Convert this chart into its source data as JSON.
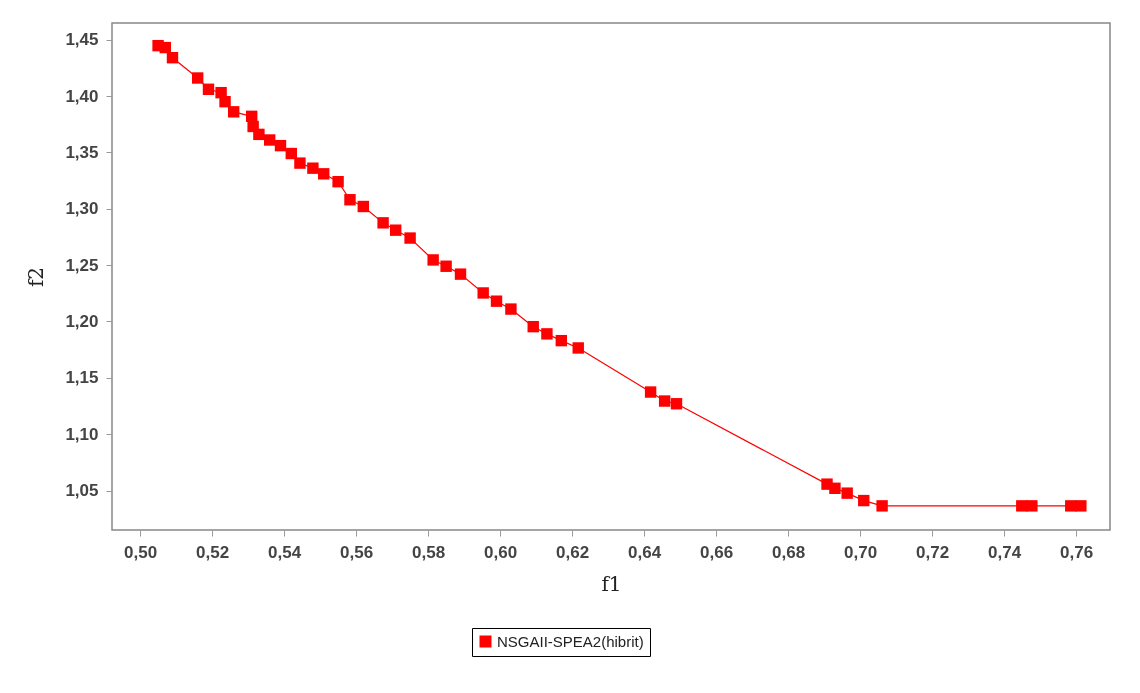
{
  "chart_data": {
    "type": "line",
    "xlabel": "f1",
    "ylabel": "f2",
    "marker": "square",
    "line_style": "solid",
    "grid": false,
    "legend": "bottom",
    "xlim": [
      0.4922,
      0.7694
    ],
    "ylim": [
      1.015,
      1.4648
    ],
    "xticks": [
      {
        "value": 0.5,
        "label": "0,50"
      },
      {
        "value": 0.52,
        "label": "0,52"
      },
      {
        "value": 0.54,
        "label": "0,54"
      },
      {
        "value": 0.56,
        "label": "0,56"
      },
      {
        "value": 0.58,
        "label": "0,58"
      },
      {
        "value": 0.6,
        "label": "0,60"
      },
      {
        "value": 0.62,
        "label": "0,62"
      },
      {
        "value": 0.64,
        "label": "0,64"
      },
      {
        "value": 0.66,
        "label": "0,66"
      },
      {
        "value": 0.68,
        "label": "0,68"
      },
      {
        "value": 0.7,
        "label": "0,70"
      },
      {
        "value": 0.72,
        "label": "0,72"
      },
      {
        "value": 0.74,
        "label": "0,74"
      },
      {
        "value": 0.76,
        "label": "0,76"
      }
    ],
    "yticks": [
      {
        "value": 1.05,
        "label": "1,05"
      },
      {
        "value": 1.1,
        "label": "1,10"
      },
      {
        "value": 1.15,
        "label": "1,15"
      },
      {
        "value": 1.2,
        "label": "1,20"
      },
      {
        "value": 1.25,
        "label": "1,25"
      },
      {
        "value": 1.3,
        "label": "1,30"
      },
      {
        "value": 1.35,
        "label": "1,35"
      },
      {
        "value": 1.4,
        "label": "1,40"
      },
      {
        "value": 1.45,
        "label": "1,45"
      }
    ],
    "series": [
      {
        "name": "NSGAII-SPEA2(hibrit)",
        "color": "#ff0000",
        "x": [
          0.505,
          0.507,
          0.509,
          0.516,
          0.519,
          0.5225,
          0.5236,
          0.526,
          0.531,
          0.5314,
          0.533,
          0.536,
          0.539,
          0.542,
          0.5444,
          0.548,
          0.551,
          0.555,
          0.5583,
          0.562,
          0.5675,
          0.571,
          0.575,
          0.5814,
          0.585,
          0.589,
          0.5953,
          0.599,
          0.603,
          0.6092,
          0.613,
          0.617,
          0.6217,
          0.6418,
          0.6457,
          0.649,
          0.6908,
          0.693,
          0.6964,
          0.701,
          0.7061,
          0.7449,
          0.7477,
          0.7585,
          0.7613
        ],
        "values": [
          1.4447,
          1.443,
          1.434,
          1.416,
          1.406,
          1.403,
          1.395,
          1.386,
          1.382,
          1.373,
          1.366,
          1.361,
          1.356,
          1.349,
          1.3405,
          1.336,
          1.331,
          1.324,
          1.308,
          1.302,
          1.2875,
          1.281,
          1.274,
          1.2546,
          1.249,
          1.242,
          1.2253,
          1.218,
          1.211,
          1.1954,
          1.189,
          1.183,
          1.1765,
          1.1374,
          1.1294,
          1.127,
          1.0557,
          1.052,
          1.0477,
          1.0411,
          1.0364,
          1.0364,
          1.0364,
          1.0364,
          1.0364
        ]
      }
    ]
  }
}
